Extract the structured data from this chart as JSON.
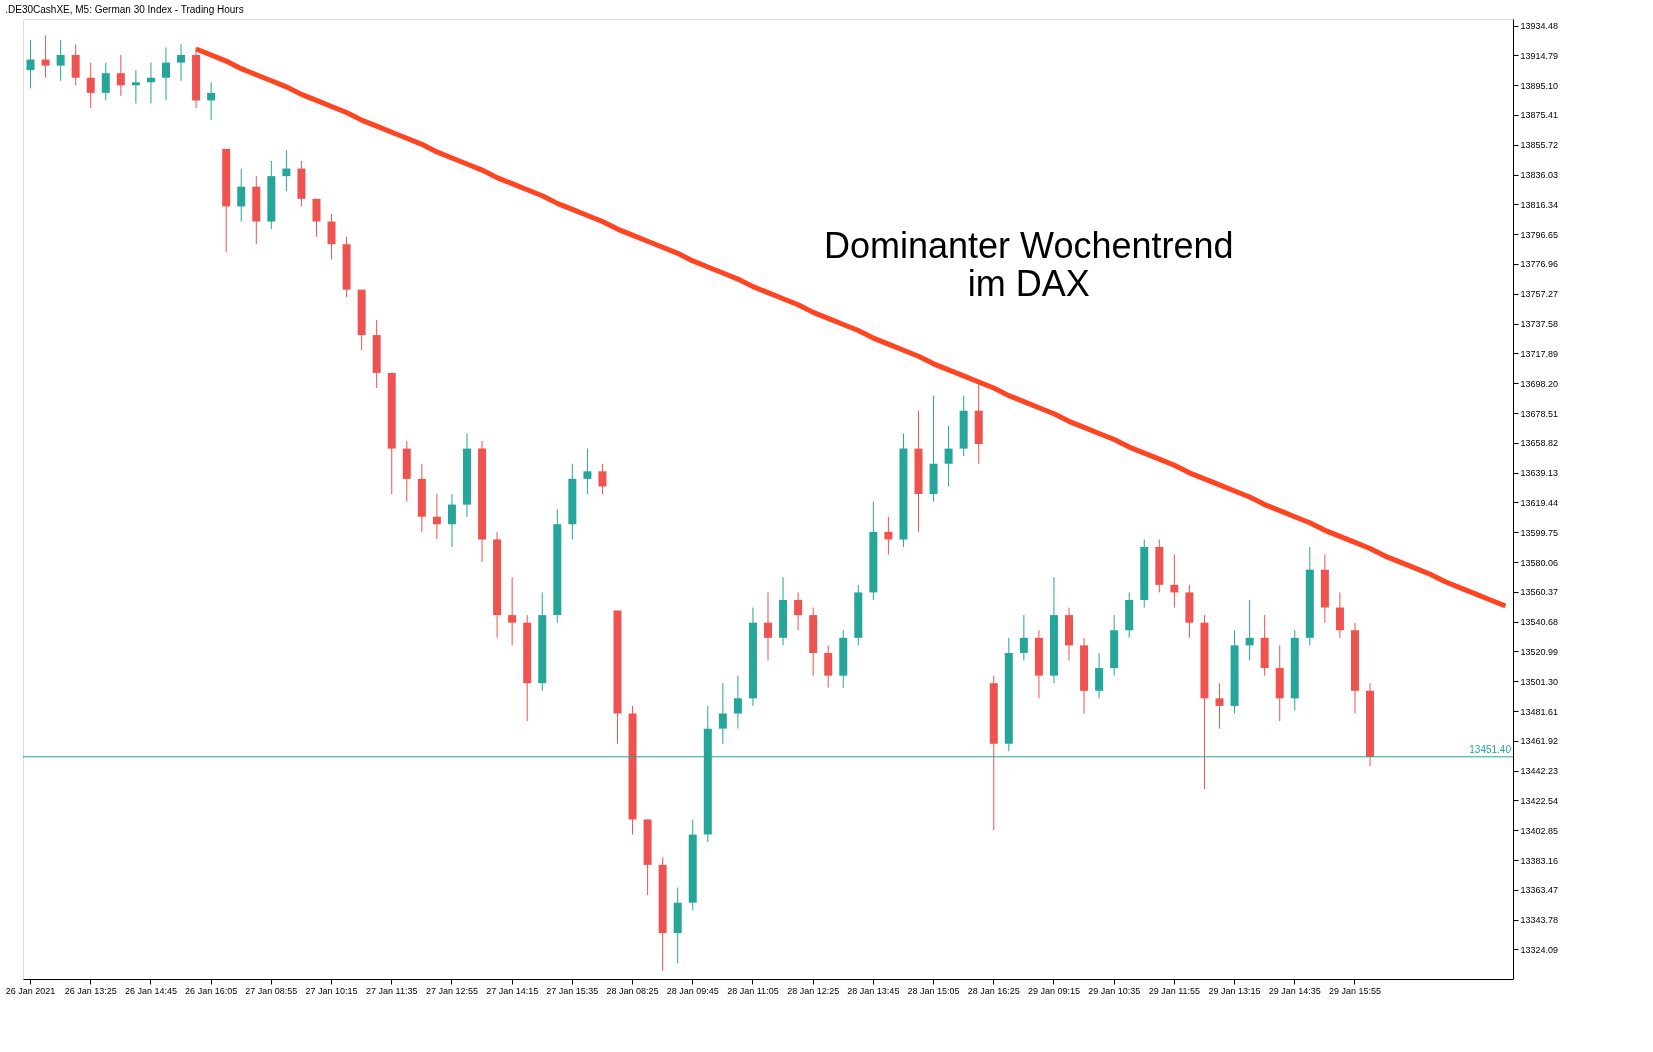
{
  "chart_data": {
    "type": "candlestick",
    "title": ".DE30CashXE, M5:  German 30 Index - Trading Hours",
    "annotations": [
      "Dominanter Wochentrend\nim DAX"
    ],
    "categories": [
      "26 Jan 2021",
      null,
      null,
      null,
      "26 Jan 13:25",
      null,
      null,
      null,
      "26 Jan 14:45",
      null,
      null,
      null,
      "26 Jan 16:05",
      null,
      null,
      null,
      "27 Jan 08:55",
      null,
      null,
      null,
      "27 Jan 10:15",
      null,
      null,
      null,
      "27 Jan 11:35",
      null,
      null,
      null,
      "27 Jan 12:55",
      null,
      null,
      null,
      "27 Jan 14:15",
      null,
      null,
      null,
      "27 Jan 15:35",
      null,
      null,
      null,
      "28 Jan 08:25",
      null,
      null,
      null,
      "28 Jan 09:45",
      null,
      null,
      null,
      "28 Jan 11:05",
      null,
      null,
      null,
      "28 Jan 12:25",
      null,
      null,
      null,
      "28 Jan 13:45",
      null,
      null,
      null,
      "28 Jan 15:05",
      null,
      null,
      null,
      "28 Jan 16:25",
      null,
      null,
      null,
      "29 Jan 09:15",
      null,
      null,
      null,
      "29 Jan 10:35",
      null,
      null,
      null,
      "29 Jan 11:55",
      null,
      null,
      null,
      "29 Jan 13:15",
      null,
      null,
      null,
      "29 Jan 14:35",
      null,
      null,
      null,
      "29 Jan 15:55",
      null,
      null,
      null,
      null,
      null,
      null,
      null,
      null,
      null,
      null
    ],
    "series": [
      {
        "type": "candlestick",
        "ohlc": [
          [
            13905,
            13925,
            13893,
            13912
          ],
          [
            13912,
            13928,
            13900,
            13908
          ],
          [
            13908,
            13925,
            13898,
            13915
          ],
          [
            13915,
            13922,
            13895,
            13900
          ],
          [
            13900,
            13910,
            13880,
            13890
          ],
          [
            13890,
            13910,
            13885,
            13903
          ],
          [
            13903,
            13915,
            13888,
            13895
          ],
          [
            13895,
            13905,
            13883,
            13897
          ],
          [
            13897,
            13910,
            13883,
            13900
          ],
          [
            13900,
            13920,
            13885,
            13910
          ],
          [
            13910,
            13922,
            13898,
            13915
          ],
          [
            13915,
            13920,
            13880,
            13885
          ],
          [
            13885,
            13897,
            13872,
            13890
          ],
          [
            13853,
            13853,
            13785,
            13815
          ],
          [
            13815,
            13840,
            13805,
            13828
          ],
          [
            13828,
            13835,
            13790,
            13805
          ],
          [
            13805,
            13845,
            13800,
            13835
          ],
          [
            13835,
            13852,
            13825,
            13840
          ],
          [
            13840,
            13845,
            13815,
            13820
          ],
          [
            13820,
            13820,
            13795,
            13805
          ],
          [
            13805,
            13810,
            13780,
            13790
          ],
          [
            13790,
            13795,
            13755,
            13760
          ],
          [
            13760,
            13760,
            13720,
            13730
          ],
          [
            13730,
            13740,
            13695,
            13705
          ],
          [
            13705,
            13705,
            13625,
            13655
          ],
          [
            13655,
            13660,
            13620,
            13635
          ],
          [
            13635,
            13645,
            13600,
            13610
          ],
          [
            13610,
            13625,
            13595,
            13605
          ],
          [
            13605,
            13625,
            13590,
            13618
          ],
          [
            13618,
            13665,
            13610,
            13655
          ],
          [
            13655,
            13660,
            13580,
            13595
          ],
          [
            13595,
            13600,
            13530,
            13545
          ],
          [
            13545,
            13570,
            13525,
            13540
          ],
          [
            13540,
            13545,
            13475,
            13500
          ],
          [
            13500,
            13560,
            13495,
            13545
          ],
          [
            13545,
            13615,
            13540,
            13605
          ],
          [
            13605,
            13645,
            13595,
            13635
          ],
          [
            13635,
            13655,
            13625,
            13640
          ],
          [
            13640,
            13645,
            13625,
            13630
          ],
          [
            13548,
            13548,
            13460,
            13480
          ],
          [
            13480,
            13485,
            13400,
            13410
          ],
          [
            13410,
            13410,
            13360,
            13380
          ],
          [
            13380,
            13385,
            13310,
            13335
          ],
          [
            13335,
            13365,
            13315,
            13355
          ],
          [
            13355,
            13410,
            13350,
            13400
          ],
          [
            13400,
            13485,
            13395,
            13470
          ],
          [
            13470,
            13500,
            13460,
            13480
          ],
          [
            13480,
            13505,
            13470,
            13490
          ],
          [
            13490,
            13550,
            13485,
            13540
          ],
          [
            13540,
            13560,
            13515,
            13530
          ],
          [
            13530,
            13570,
            13525,
            13555
          ],
          [
            13555,
            13560,
            13535,
            13545
          ],
          [
            13545,
            13550,
            13505,
            13520
          ],
          [
            13520,
            13525,
            13497,
            13505
          ],
          [
            13505,
            13535,
            13497,
            13530
          ],
          [
            13530,
            13565,
            13525,
            13560
          ],
          [
            13560,
            13620,
            13555,
            13600
          ],
          [
            13600,
            13610,
            13585,
            13595
          ],
          [
            13595,
            13665,
            13590,
            13655
          ],
          [
            13655,
            13680,
            13600,
            13625
          ],
          [
            13625,
            13690,
            13620,
            13645
          ],
          [
            13645,
            13670,
            13630,
            13655
          ],
          [
            13655,
            13690,
            13650,
            13680
          ],
          [
            13680,
            13700,
            13645,
            13658
          ],
          [
            13500,
            13505,
            13403,
            13460
          ],
          [
            13460,
            13530,
            13455,
            13520
          ],
          [
            13520,
            13545,
            13515,
            13530
          ],
          [
            13530,
            13535,
            13490,
            13505
          ],
          [
            13505,
            13570,
            13500,
            13545
          ],
          [
            13545,
            13550,
            13515,
            13525
          ],
          [
            13525,
            13530,
            13480,
            13495
          ],
          [
            13495,
            13520,
            13490,
            13510
          ],
          [
            13510,
            13545,
            13505,
            13535
          ],
          [
            13535,
            13560,
            13530,
            13555
          ],
          [
            13555,
            13595,
            13550,
            13590
          ],
          [
            13590,
            13595,
            13560,
            13565
          ],
          [
            13565,
            13585,
            13550,
            13560
          ],
          [
            13560,
            13565,
            13530,
            13540
          ],
          [
            13540,
            13545,
            13430,
            13490
          ],
          [
            13490,
            13500,
            13470,
            13485
          ],
          [
            13485,
            13535,
            13480,
            13525
          ],
          [
            13525,
            13555,
            13515,
            13530
          ],
          [
            13530,
            13545,
            13505,
            13510
          ],
          [
            13510,
            13525,
            13475,
            13490
          ],
          [
            13490,
            13535,
            13482,
            13530
          ],
          [
            13530,
            13590,
            13525,
            13575
          ],
          [
            13575,
            13585,
            13540,
            13550
          ],
          [
            13550,
            13560,
            13530,
            13535
          ],
          [
            13535,
            13540,
            13480,
            13495
          ],
          [
            13495,
            13500,
            13445,
            13451.4
          ],
          null,
          null,
          null,
          null,
          null,
          null,
          null,
          null,
          null
        ],
        "colors": [
          "#26a69a",
          "#ef5350",
          "#26a69a",
          "#ef5350",
          "#ef5350",
          "#26a69a",
          "#ef5350",
          "#26a69a",
          "#26a69a",
          "#26a69a",
          "#26a69a",
          "#ef5350",
          "#26a69a",
          "#ef5350",
          "#26a69a",
          "#ef5350",
          "#26a69a",
          "#26a69a",
          "#ef5350",
          "#ef5350",
          "#ef5350",
          "#ef5350",
          "#ef5350",
          "#ef5350",
          "#ef5350",
          "#ef5350",
          "#ef5350",
          "#ef5350",
          "#26a69a",
          "#26a69a",
          "#ef5350",
          "#ef5350",
          "#ef5350",
          "#ef5350",
          "#26a69a",
          "#26a69a",
          "#26a69a",
          "#26a69a",
          "#ef5350",
          "#ef5350",
          "#ef5350",
          "#ef5350",
          "#ef5350",
          "#26a69a",
          "#26a69a",
          "#26a69a",
          "#26a69a",
          "#26a69a",
          "#26a69a",
          "#ef5350",
          "#26a69a",
          "#ef5350",
          "#ef5350",
          "#ef5350",
          "#26a69a",
          "#26a69a",
          "#26a69a",
          "#ef5350",
          "#26a69a",
          "#ef5350",
          "#26a69a",
          "#26a69a",
          "#26a69a",
          "#ef5350",
          "#ef5350",
          "#26a69a",
          "#26a69a",
          "#ef5350",
          "#26a69a",
          "#ef5350",
          "#ef5350",
          "#26a69a",
          "#26a69a",
          "#26a69a",
          "#26a69a",
          "#ef5350",
          "#ef5350",
          "#ef5350",
          "#ef5350",
          "#ef5350",
          "#26a69a",
          "#26a69a",
          "#ef5350",
          "#ef5350",
          "#26a69a",
          "#26a69a",
          "#ef5350",
          "#ef5350",
          "#ef5350",
          "#ef5350",
          null,
          null,
          null,
          null,
          null,
          null,
          null,
          null,
          null
        ]
      },
      {
        "type": "line",
        "color": "#ff4422",
        "values": [
          null,
          null,
          null,
          null,
          null,
          null,
          null,
          null,
          null,
          null,
          null,
          13919,
          13915,
          13911,
          13906,
          13902,
          13898,
          13894,
          13889,
          13885,
          13881,
          13877,
          13872,
          13868,
          13864,
          13860,
          13856,
          13851,
          13847,
          13843,
          13839,
          13834,
          13830,
          13826,
          13822,
          13817,
          13813,
          13809,
          13805,
          13800,
          13796,
          13792,
          13788,
          13784,
          13779,
          13775,
          13771,
          13767,
          13762,
          13758,
          13754,
          13750,
          13745,
          13741,
          13737,
          13733,
          13728,
          13724,
          13720,
          13716,
          13711,
          13707,
          13703,
          13699,
          13695,
          13690,
          13686,
          13682,
          13678,
          13673,
          13669,
          13665,
          13661,
          13656,
          13652,
          13648,
          13644,
          13639,
          13635,
          13631,
          13627,
          13623,
          13618,
          13614,
          13610,
          13606,
          13601,
          13597,
          13593,
          13589,
          13584,
          13580,
          13576,
          13572,
          13567,
          13563,
          13559,
          13555,
          13551
        ]
      }
    ],
    "ylim": [
      13304.6,
      13938.8
    ],
    "yticks": [
      13324.09,
      13343.78,
      13363.47,
      13383.16,
      13402.85,
      13422.54,
      13442.23,
      13461.92,
      13481.61,
      {
        "value": 13501.3,
        "label": "13501.30"
      },
      13520.99,
      13540.68,
      13560.37,
      13580.06,
      13599.75,
      13619.44,
      13639.13,
      13658.82,
      13678.51,
      {
        "value": 13698.2,
        "label": "13698.20"
      },
      13717.89,
      13737.58,
      13757.27,
      13776.96,
      13796.65,
      13816.34,
      13836.03,
      13855.72,
      13875.41,
      {
        "value": 13895.1,
        "label": "13895.10"
      },
      13914.79,
      13934.48
    ],
    "ref_lines": [
      {
        "axis": "y",
        "value": 13451.4,
        "label": "13451.40",
        "color": "#26a69a"
      }
    ],
    "grid": false
  }
}
